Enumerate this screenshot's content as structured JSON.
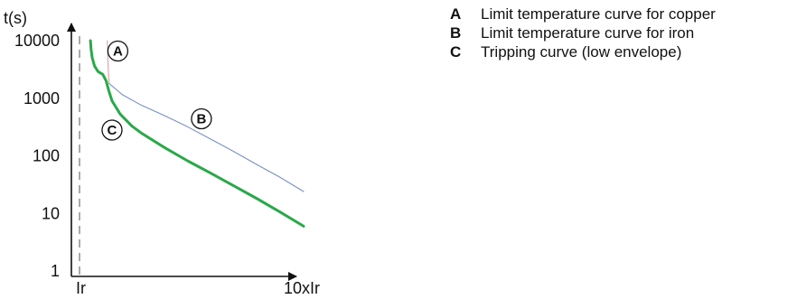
{
  "chart_data": {
    "type": "line",
    "y_scale": "log",
    "grid": false,
    "ylabel": "t(s)",
    "xlabel_prefix": "10",
    "xlabel": "xIr",
    "x_marker_label": "Ir",
    "yticks": [
      10000,
      1000,
      100,
      10,
      1
    ],
    "ytick_labels": [
      "10000",
      "1000",
      "100",
      "10",
      "1"
    ],
    "ylim": [
      1,
      10000
    ],
    "xlim": [
      0,
      10
    ],
    "x_marker": 1,
    "series": [
      {
        "key": "A",
        "color": "#d9a2a2",
        "points": [
          [
            1.55,
            10000
          ],
          [
            1.57,
            5000
          ],
          [
            1.6,
            2500
          ],
          [
            1.63,
            1800
          ]
        ]
      },
      {
        "key": "B",
        "color": "#7b8fc4",
        "points": [
          [
            1.63,
            1800
          ],
          [
            2.2,
            1150
          ],
          [
            3,
            760
          ],
          [
            4,
            500
          ],
          [
            5,
            320
          ],
          [
            6,
            195
          ],
          [
            7,
            118
          ],
          [
            8,
            70
          ],
          [
            9,
            42
          ],
          [
            10,
            24
          ]
        ]
      },
      {
        "key": "C",
        "color": "#2aa84a",
        "points": [
          [
            0.82,
            10000
          ],
          [
            0.85,
            7000
          ],
          [
            0.9,
            5000
          ],
          [
            1,
            3600
          ],
          [
            1.15,
            2900
          ],
          [
            1.35,
            2600
          ],
          [
            1.5,
            2000
          ],
          [
            1.6,
            1400
          ],
          [
            1.75,
            900
          ],
          [
            2.1,
            530
          ],
          [
            2.6,
            330
          ],
          [
            3,
            250
          ],
          [
            4,
            140
          ],
          [
            5,
            82
          ],
          [
            6,
            50
          ],
          [
            7,
            30
          ],
          [
            8,
            18
          ],
          [
            9,
            10.5
          ],
          [
            10,
            6
          ]
        ]
      }
    ],
    "callouts": [
      {
        "letter": "A",
        "x": 2.0,
        "y": 6600
      },
      {
        "letter": "B",
        "x": 5.6,
        "y": 440
      },
      {
        "letter": "C",
        "x": 1.75,
        "y": 280
      }
    ]
  },
  "legend": [
    {
      "key": "A",
      "text": "Limit temperature curve for copper"
    },
    {
      "key": "B",
      "text": "Limit temperature curve for iron"
    },
    {
      "key": "C",
      "text": "Tripping curve (low envelope)"
    }
  ]
}
